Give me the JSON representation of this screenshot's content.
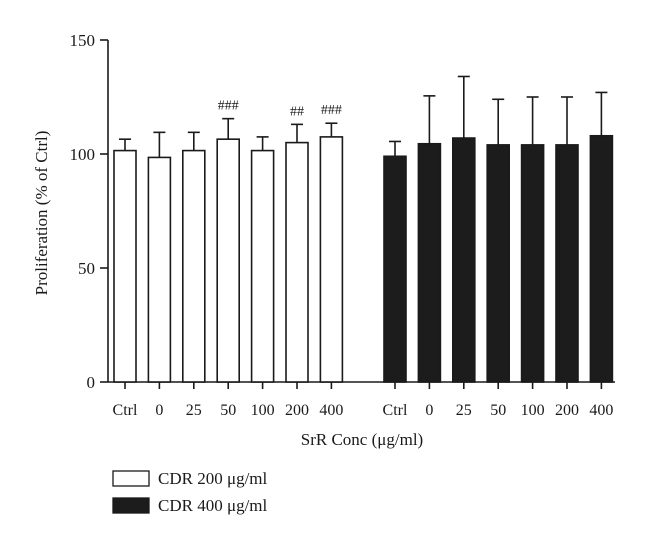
{
  "chart_data": {
    "type": "bar",
    "title": "",
    "ylabel": "Proliferation (% of Ctrl)",
    "xlabel": "SrR Conc (μg/ml)",
    "ylim": [
      0,
      150
    ],
    "yticks": [
      0,
      50,
      100,
      150
    ],
    "grid": false,
    "legend_position": "bottom-left",
    "colors": {
      "series1": "#ffffff",
      "series2": "#1c1c1c",
      "axis": "#1a1a1a"
    },
    "categories": [
      "Ctrl",
      "0",
      "25",
      "50",
      "100",
      "200",
      "400"
    ],
    "series": [
      {
        "name": "CDR 200 μg/ml",
        "values": [
          101.5,
          98.5,
          101.5,
          106.5,
          101.5,
          105,
          107.5
        ],
        "errors": [
          5,
          11,
          8,
          9,
          6,
          8,
          6
        ],
        "annotations": [
          "",
          "",
          "",
          "###",
          "",
          "##",
          "###"
        ]
      },
      {
        "name": "CDR 400 μg/ml",
        "values": [
          99,
          104.5,
          107,
          104,
          104,
          104,
          108
        ],
        "errors": [
          6.5,
          21,
          27,
          20,
          21,
          21,
          19
        ],
        "annotations": [
          "",
          "",
          "",
          "",
          "",
          "",
          ""
        ]
      }
    ]
  }
}
